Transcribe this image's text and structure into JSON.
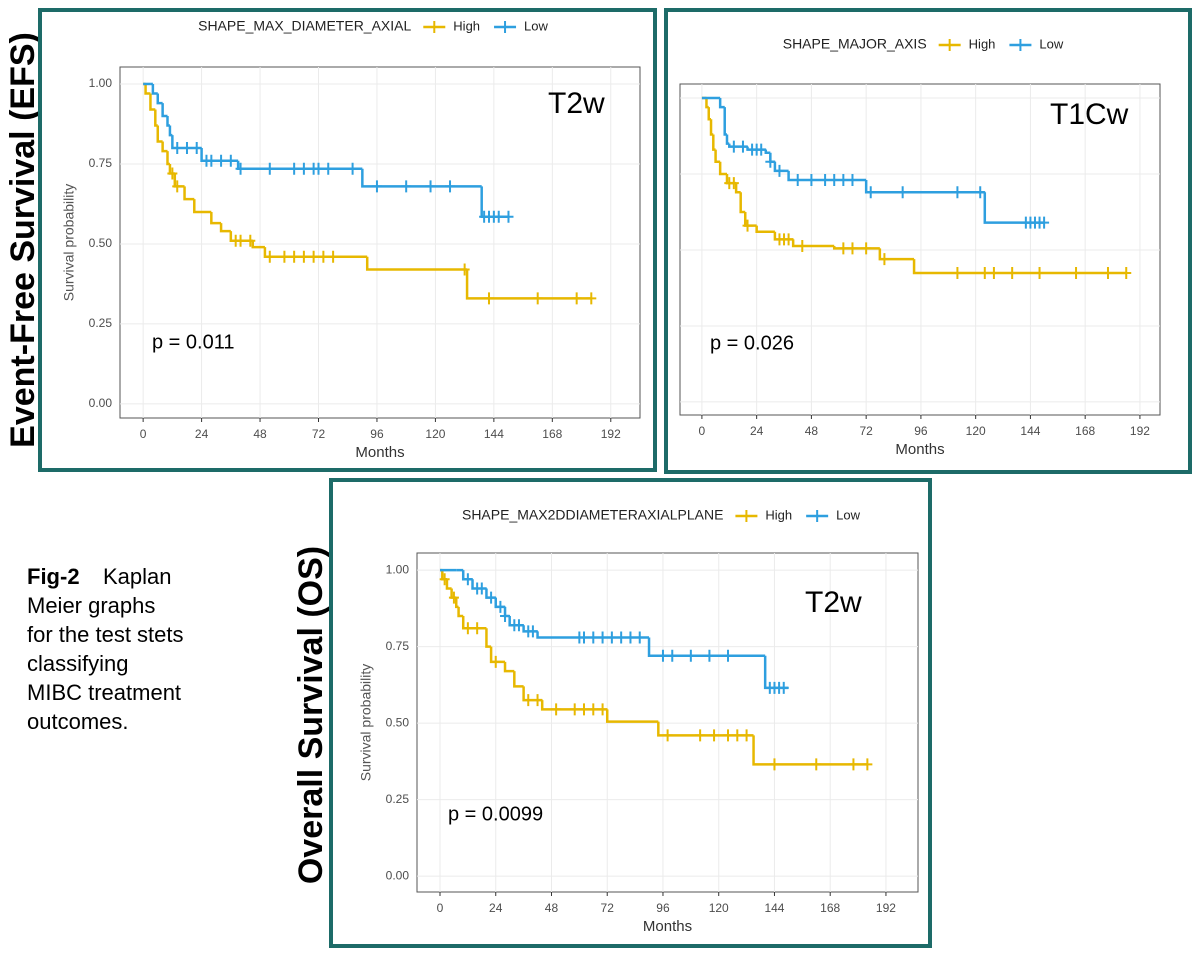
{
  "row_labels": [
    "Event-Free Survival (EFS)",
    "Overall Survival (OS)"
  ],
  "caption": {
    "label": "Fig-2",
    "lines": [
      "Kaplan",
      "Meier graphs",
      "for the test stets",
      "classifying",
      "MIBC treatment",
      "outcomes."
    ]
  },
  "chart_data": [
    {
      "type": "km",
      "legend_title": "SHAPE_MAX_DIAMETER_AXIAL",
      "legend": "top",
      "tag": "T2w",
      "p_value": "p = 0.011",
      "xlabel": "Months",
      "ylabel": "Survival probability",
      "grid": true,
      "show_ytick_labels": true,
      "xlim": [
        -9.5,
        204
      ],
      "ylim": [
        -0.044,
        1.053
      ],
      "xticks": [
        0,
        24,
        48,
        72,
        96,
        120,
        144,
        168,
        192
      ],
      "yticks": [
        {
          "value": 0,
          "label": "0.00"
        },
        {
          "value": 0.25,
          "label": "0.25"
        },
        {
          "value": 0.5,
          "label": "0.50"
        },
        {
          "value": 0.75,
          "label": "0.75"
        },
        {
          "value": 1,
          "label": "1.00"
        }
      ],
      "series": [
        {
          "name": "High",
          "color": "#E7B800",
          "x": [
            0,
            1,
            3,
            5,
            6,
            8,
            10,
            11,
            13,
            17,
            21,
            28,
            32,
            36,
            45,
            50,
            92,
            133,
            184
          ],
          "values": [
            1,
            0.97,
            0.92,
            0.87,
            0.82,
            0.79,
            0.75,
            0.72,
            0.68,
            0.64,
            0.6,
            0.565,
            0.54,
            0.51,
            0.49,
            0.46,
            0.42,
            0.33,
            0.33
          ],
          "censor_x": [
            12,
            14,
            38,
            40,
            44,
            52,
            58,
            62,
            66,
            70,
            74,
            78,
            132,
            142,
            162,
            178,
            184
          ]
        },
        {
          "name": "Low",
          "color": "#2E9FDF",
          "x": [
            0,
            3,
            4,
            6,
            8,
            10,
            11,
            12,
            24,
            39,
            90,
            139,
            150
          ],
          "values": [
            1,
            1,
            0.97,
            0.94,
            0.9,
            0.87,
            0.84,
            0.8,
            0.76,
            0.735,
            0.68,
            0.585,
            0.585
          ],
          "censor_x": [
            14,
            18,
            22,
            26,
            28,
            32,
            36,
            40,
            52,
            62,
            66,
            70,
            72,
            76,
            86,
            96,
            108,
            118,
            126,
            140,
            142,
            144,
            146,
            150
          ]
        }
      ]
    },
    {
      "type": "km",
      "legend_title": "SHAPE_MAJOR_AXIS",
      "legend": "top",
      "tag": "T1Cw",
      "p_value": "p = 0.026",
      "xlabel": "Months",
      "grid": true,
      "show_ytick_labels": false,
      "xlim": [
        -9.6,
        200.8
      ],
      "ylim": [
        -0.043,
        1.046
      ],
      "xticks": [
        0,
        24,
        48,
        72,
        96,
        120,
        144,
        168,
        192
      ],
      "yticks": [
        0,
        0.25,
        0.5,
        0.75,
        1
      ],
      "series": [
        {
          "name": "High",
          "color": "#E7B800",
          "x": [
            0,
            2,
            3,
            4,
            5,
            6,
            8,
            11,
            15,
            17,
            19,
            24,
            32,
            40,
            58,
            78,
            93,
            186
          ],
          "values": [
            1,
            0.97,
            0.93,
            0.88,
            0.83,
            0.79,
            0.75,
            0.72,
            0.69,
            0.625,
            0.58,
            0.56,
            0.535,
            0.513,
            0.505,
            0.47,
            0.424,
            0.424
          ],
          "censor_x": [
            12,
            14,
            20,
            34,
            36,
            38,
            44,
            62,
            66,
            72,
            80,
            112,
            124,
            128,
            136,
            148,
            164,
            178,
            186
          ]
        },
        {
          "name": "Low",
          "color": "#2E9FDF",
          "x": [
            0,
            8,
            10,
            11,
            12,
            20,
            28,
            30,
            32,
            38,
            72,
            124,
            150
          ],
          "values": [
            1,
            0.97,
            0.88,
            0.85,
            0.84,
            0.83,
            0.82,
            0.79,
            0.76,
            0.73,
            0.69,
            0.59,
            0.59
          ],
          "censor_x": [
            14,
            18,
            22,
            24,
            26,
            30,
            34,
            42,
            48,
            54,
            58,
            62,
            66,
            74,
            88,
            112,
            122,
            142,
            144,
            146,
            148,
            150
          ]
        }
      ]
    },
    {
      "type": "km",
      "legend_title": "SHAPE_MAX2DDIAMETERAXIALPLANE",
      "legend": "top",
      "tag": "T2w",
      "p_value": "p = 0.0099",
      "xlabel": "Months",
      "ylabel": "Survival probability",
      "grid": true,
      "show_ytick_labels": true,
      "xlim": [
        -9.9,
        205.8
      ],
      "ylim": [
        -0.052,
        1.056
      ],
      "xticks": [
        0,
        24,
        48,
        72,
        96,
        120,
        144,
        168,
        192
      ],
      "yticks": [
        {
          "value": 0,
          "label": "0.00"
        },
        {
          "value": 0.25,
          "label": "0.25"
        },
        {
          "value": 0.5,
          "label": "0.50"
        },
        {
          "value": 0.75,
          "label": "0.75"
        },
        {
          "value": 1,
          "label": "1.00"
        }
      ],
      "series": [
        {
          "name": "High",
          "color": "#E7B800",
          "x": [
            0,
            1,
            3,
            5,
            7,
            8,
            10,
            20,
            22,
            28,
            32,
            36,
            44,
            72,
            94,
            135,
            184
          ],
          "values": [
            1,
            0.97,
            0.94,
            0.91,
            0.88,
            0.85,
            0.81,
            0.75,
            0.7,
            0.67,
            0.62,
            0.575,
            0.545,
            0.505,
            0.46,
            0.365,
            0.365
          ],
          "censor_x": [
            2,
            6,
            12,
            16,
            24,
            38,
            42,
            50,
            58,
            62,
            66,
            70,
            98,
            112,
            118,
            124,
            128,
            132,
            144,
            162,
            178,
            184
          ]
        },
        {
          "name": "Low",
          "color": "#2E9FDF",
          "x": [
            0,
            7,
            10,
            14,
            20,
            24,
            28,
            30,
            36,
            42,
            90,
            140,
            150
          ],
          "values": [
            1,
            1,
            0.97,
            0.94,
            0.91,
            0.88,
            0.85,
            0.82,
            0.8,
            0.78,
            0.72,
            0.615,
            0.615
          ],
          "censor_x": [
            12,
            16,
            18,
            22,
            26,
            28,
            32,
            34,
            38,
            40,
            60,
            62,
            66,
            70,
            74,
            78,
            82,
            86,
            96,
            100,
            108,
            116,
            124,
            142,
            144,
            146,
            148
          ]
        }
      ]
    }
  ]
}
